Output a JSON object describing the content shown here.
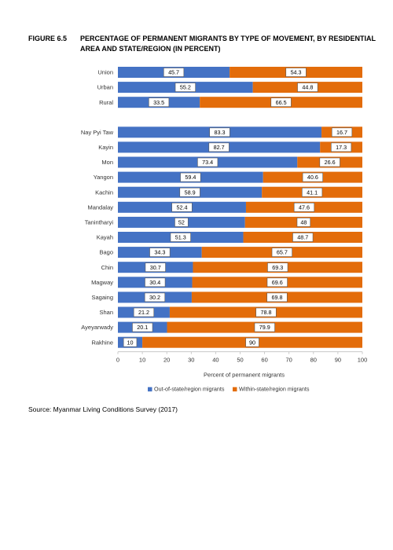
{
  "figure": {
    "number": "FIGURE 6.5",
    "title": "PERCENTAGE OF PERMANENT MIGRANTS BY TYPE OF MOVEMENT, BY RESIDENTIAL AREA AND STATE/REGION (IN PERCENT)",
    "source": "Source: Myanmar Living Conditions Survey (2017)"
  },
  "chart_data": {
    "type": "bar",
    "orientation": "horizontal",
    "stacked": true,
    "categories": [
      "Union",
      "Urban",
      "Rural",
      "Nay Pyi Taw",
      "Kayin",
      "Mon",
      "Yangon",
      "Kachin",
      "Mandalay",
      "Tanintharyi",
      "Kayah",
      "Bago",
      "Chin",
      "Magway",
      "Sagaing",
      "Shan",
      "Ayeyarwady",
      "Rakhine"
    ],
    "value_labels": {
      "out": [
        "45.7",
        "55.2",
        "33.5",
        "83.3",
        "82.7",
        "73.4",
        "59.4",
        "58.9",
        "52.4",
        "52",
        "51.3",
        "34.3",
        "30.7",
        "30.4",
        "30.2",
        "21.2",
        "20.1",
        "10"
      ],
      "within": [
        "54.3",
        "44.8",
        "66.5",
        "16.7",
        "17.3",
        "26.6",
        "40.6",
        "41.1",
        "47.6",
        "48",
        "48.7",
        "65.7",
        "69.3",
        "69.6",
        "69.8",
        "78.8",
        "79.9",
        "90"
      ]
    },
    "series": [
      {
        "name": "Out-of-state/region migrants",
        "color": "#4472c4",
        "values": [
          45.7,
          55.2,
          33.5,
          83.3,
          82.7,
          73.4,
          59.4,
          58.9,
          52.4,
          52,
          51.3,
          34.3,
          30.7,
          30.4,
          30.2,
          21.2,
          20.1,
          10
        ]
      },
      {
        "name": "Within-state/region migrants",
        "color": "#e36c0a",
        "values": [
          54.3,
          44.8,
          66.5,
          16.7,
          17.3,
          26.6,
          40.6,
          41.1,
          47.6,
          48,
          48.7,
          65.7,
          69.3,
          69.6,
          69.8,
          78.8,
          79.9,
          90
        ]
      }
    ],
    "xlabel": "Percent of permanent migrants",
    "xlim": [
      0,
      100
    ],
    "xticks": [
      "0",
      "10",
      "20",
      "30",
      "40",
      "50",
      "60",
      "70",
      "80",
      "90",
      "100"
    ],
    "grid": false,
    "legend_position": "bottom"
  }
}
